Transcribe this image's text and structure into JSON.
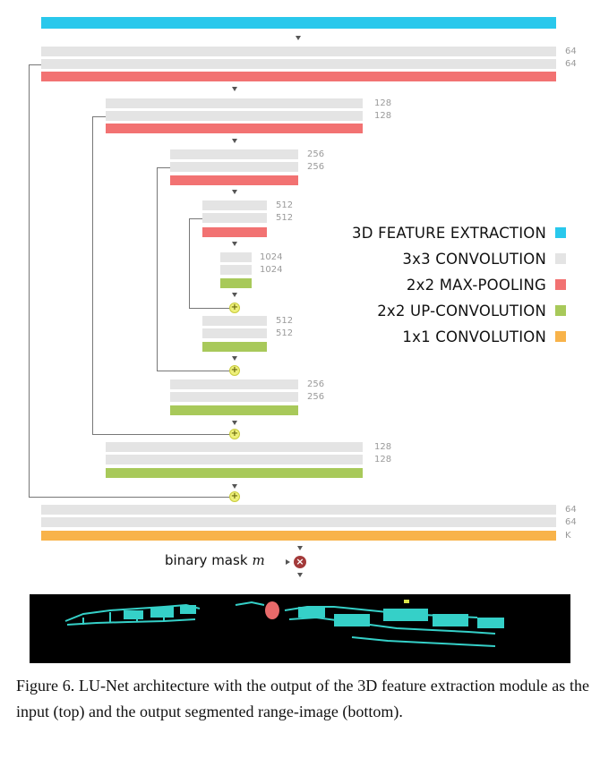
{
  "colors": {
    "feature_extraction": "#29c8ec",
    "conv3x3": "#e4e4e4",
    "maxpool": "#f27272",
    "upconv": "#a8c95a",
    "conv1x1": "#f8b34a",
    "skip_add": "#eef07a",
    "multiply": "#a33a3a"
  },
  "blocks": {
    "in_feat": {
      "type": "feature_extraction"
    },
    "e1a": {
      "type": "conv3x3",
      "label": "64"
    },
    "e1b": {
      "type": "conv3x3",
      "label": "64"
    },
    "p1": {
      "type": "maxpool"
    },
    "e2a": {
      "type": "conv3x3",
      "label": "128"
    },
    "e2b": {
      "type": "conv3x3",
      "label": "128"
    },
    "p2": {
      "type": "maxpool"
    },
    "e3a": {
      "type": "conv3x3",
      "label": "256"
    },
    "e3b": {
      "type": "conv3x3",
      "label": "256"
    },
    "p3": {
      "type": "maxpool"
    },
    "e4a": {
      "type": "conv3x3",
      "label": "512"
    },
    "e4b": {
      "type": "conv3x3",
      "label": "512"
    },
    "p4": {
      "type": "maxpool"
    },
    "b5a": {
      "type": "conv3x3",
      "label": "1024"
    },
    "b5b": {
      "type": "conv3x3",
      "label": "1024"
    },
    "u4": {
      "type": "upconv"
    },
    "d4a": {
      "type": "conv3x3",
      "label": "512"
    },
    "d4b": {
      "type": "conv3x3",
      "label": "512"
    },
    "u3": {
      "type": "upconv"
    },
    "d3a": {
      "type": "conv3x3",
      "label": "256"
    },
    "d3b": {
      "type": "conv3x3",
      "label": "256"
    },
    "u2": {
      "type": "upconv"
    },
    "d2a": {
      "type": "conv3x3",
      "label": "128"
    },
    "d2b": {
      "type": "conv3x3",
      "label": "128"
    },
    "u1": {
      "type": "upconv"
    },
    "d1a": {
      "type": "conv3x3",
      "label": "64"
    },
    "d1b": {
      "type": "conv3x3",
      "label": "64"
    },
    "out": {
      "type": "conv1x1",
      "label": "K"
    }
  },
  "legend": [
    {
      "label": "3D FEATURE EXTRACTION",
      "type": "feature_extraction"
    },
    {
      "label": "3x3 CONVOLUTION",
      "type": "conv3x3"
    },
    {
      "label": "2x2 MAX-POOLING",
      "type": "maxpool"
    },
    {
      "label": "2x2 UP-CONVOLUTION",
      "type": "upconv"
    },
    {
      "label": "1x1 CONVOLUTION",
      "type": "conv1x1"
    }
  ],
  "output": {
    "mask_label": "binary mask",
    "mask_symbol": "m",
    "multiply_icon": "multiply-icon"
  },
  "caption": "Figure 6. LU-Net architecture with the output of the 3D feature extraction module as the input (top) and the output segmented range-image (bottom)."
}
